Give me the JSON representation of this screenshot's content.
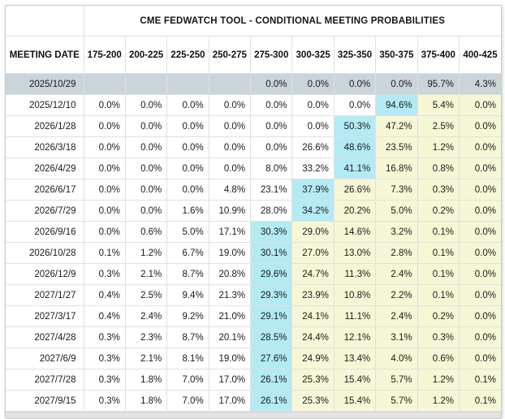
{
  "widget": {
    "title": "CME FEDWATCH TOOL - CONDITIONAL MEETING PROBABILITIES",
    "colors": {
      "highlight_target_cell": "#b3ebf4",
      "highlight_above_cells": "#f7f7d6",
      "selected_row": "#cad5da",
      "cell_border": "#e0e0e0",
      "outer_border": "#c9c9c9",
      "footer_bar": "#e3e3e3"
    }
  },
  "table": {
    "date_header": "MEETING DATE",
    "rate_headers": [
      "175-200",
      "200-225",
      "225-250",
      "250-275",
      "275-300",
      "300-325",
      "325-350",
      "350-375",
      "375-400",
      "400-425"
    ],
    "rows": [
      {
        "date": "2025/10/29",
        "selected": true,
        "cyan": null,
        "values": [
          "",
          "",
          "",
          "",
          "0.0%",
          "0.0%",
          "0.0%",
          "0.0%",
          "95.7%",
          "4.3%"
        ]
      },
      {
        "date": "2025/12/10",
        "selected": false,
        "cyan": 7,
        "values": [
          "0.0%",
          "0.0%",
          "0.0%",
          "0.0%",
          "0.0%",
          "0.0%",
          "0.0%",
          "94.6%",
          "5.4%",
          "0.0%"
        ]
      },
      {
        "date": "2026/1/28",
        "selected": false,
        "cyan": 6,
        "values": [
          "0.0%",
          "0.0%",
          "0.0%",
          "0.0%",
          "0.0%",
          "0.0%",
          "50.3%",
          "47.2%",
          "2.5%",
          "0.0%"
        ]
      },
      {
        "date": "2026/3/18",
        "selected": false,
        "cyan": 6,
        "values": [
          "0.0%",
          "0.0%",
          "0.0%",
          "0.0%",
          "0.0%",
          "26.6%",
          "48.6%",
          "23.5%",
          "1.2%",
          "0.0%"
        ]
      },
      {
        "date": "2026/4/29",
        "selected": false,
        "cyan": 6,
        "values": [
          "0.0%",
          "0.0%",
          "0.0%",
          "0.0%",
          "8.0%",
          "33.2%",
          "41.1%",
          "16.8%",
          "0.8%",
          "0.0%"
        ]
      },
      {
        "date": "2026/6/17",
        "selected": false,
        "cyan": 5,
        "values": [
          "0.0%",
          "0.0%",
          "0.0%",
          "4.8%",
          "23.1%",
          "37.9%",
          "26.6%",
          "7.3%",
          "0.3%",
          "0.0%"
        ]
      },
      {
        "date": "2026/7/29",
        "selected": false,
        "cyan": 5,
        "values": [
          "0.0%",
          "0.0%",
          "1.6%",
          "10.9%",
          "28.0%",
          "34.2%",
          "20.2%",
          "5.0%",
          "0.2%",
          "0.0%"
        ]
      },
      {
        "date": "2026/9/16",
        "selected": false,
        "cyan": 4,
        "values": [
          "0.0%",
          "0.6%",
          "5.0%",
          "17.1%",
          "30.3%",
          "29.0%",
          "14.6%",
          "3.2%",
          "0.1%",
          "0.0%"
        ]
      },
      {
        "date": "2026/10/28",
        "selected": false,
        "cyan": 4,
        "values": [
          "0.1%",
          "1.2%",
          "6.7%",
          "19.0%",
          "30.1%",
          "27.0%",
          "13.0%",
          "2.8%",
          "0.1%",
          "0.0%"
        ]
      },
      {
        "date": "2026/12/9",
        "selected": false,
        "cyan": 4,
        "values": [
          "0.3%",
          "2.1%",
          "8.7%",
          "20.8%",
          "29.6%",
          "24.7%",
          "11.3%",
          "2.4%",
          "0.1%",
          "0.0%"
        ]
      },
      {
        "date": "2027/1/27",
        "selected": false,
        "cyan": 4,
        "values": [
          "0.4%",
          "2.5%",
          "9.4%",
          "21.3%",
          "29.3%",
          "23.9%",
          "10.8%",
          "2.2%",
          "0.1%",
          "0.0%"
        ]
      },
      {
        "date": "2027/3/17",
        "selected": false,
        "cyan": 4,
        "values": [
          "0.4%",
          "2.4%",
          "9.2%",
          "21.0%",
          "29.1%",
          "24.1%",
          "11.1%",
          "2.4%",
          "0.2%",
          "0.0%"
        ]
      },
      {
        "date": "2027/4/28",
        "selected": false,
        "cyan": 4,
        "values": [
          "0.3%",
          "2.3%",
          "8.7%",
          "20.1%",
          "28.5%",
          "24.4%",
          "12.1%",
          "3.1%",
          "0.3%",
          "0.0%"
        ]
      },
      {
        "date": "2027/6/9",
        "selected": false,
        "cyan": 4,
        "values": [
          "0.3%",
          "2.1%",
          "8.1%",
          "19.0%",
          "27.6%",
          "24.9%",
          "13.4%",
          "4.0%",
          "0.6%",
          "0.0%"
        ]
      },
      {
        "date": "2027/7/28",
        "selected": false,
        "cyan": 4,
        "values": [
          "0.3%",
          "1.8%",
          "7.0%",
          "17.0%",
          "26.1%",
          "25.3%",
          "15.4%",
          "5.7%",
          "1.2%",
          "0.1%"
        ]
      },
      {
        "date": "2027/9/15",
        "selected": false,
        "cyan": 4,
        "values": [
          "0.3%",
          "1.8%",
          "7.0%",
          "17.0%",
          "26.1%",
          "25.3%",
          "15.4%",
          "5.7%",
          "1.2%",
          "0.1%"
        ]
      }
    ]
  }
}
